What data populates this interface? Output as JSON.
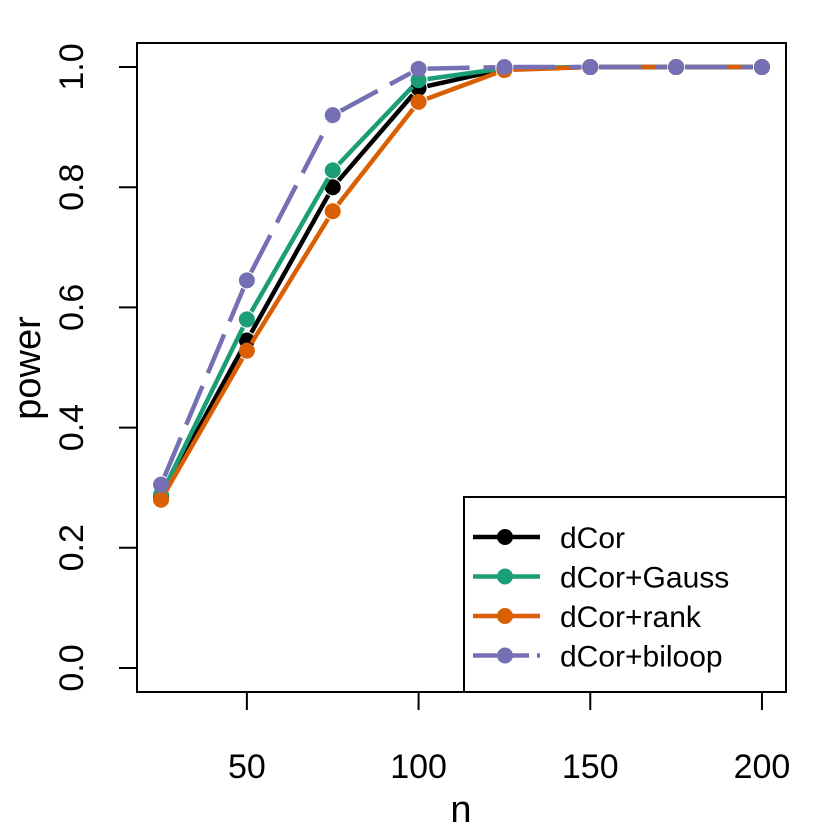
{
  "chart_data": {
    "type": "line",
    "title": "",
    "xlabel": "n",
    "ylabel": "power",
    "xlim": [
      18,
      207
    ],
    "ylim": [
      -0.04,
      1.04
    ],
    "x_ticks": [
      50,
      100,
      150,
      200
    ],
    "y_ticks": [
      0.0,
      0.2,
      0.4,
      0.6,
      0.8,
      1.0
    ],
    "x_tick_labels": [
      "50",
      "100",
      "150",
      "200"
    ],
    "y_tick_labels": [
      "0.0",
      "0.2",
      "0.4",
      "0.6",
      "0.8",
      "1.0"
    ],
    "grid": false,
    "legend_position": "bottom-right",
    "x": [
      25,
      50,
      75,
      100,
      125,
      150,
      175,
      200
    ],
    "series": [
      {
        "name": "dCor",
        "color": "#000000",
        "dash": "solid",
        "values": [
          0.285,
          0.545,
          0.8,
          0.965,
          0.997,
          1.0,
          1.0,
          1.0
        ]
      },
      {
        "name": "dCor+Gauss",
        "color": "#1b9e77",
        "dash": "solid",
        "values": [
          0.288,
          0.58,
          0.828,
          0.978,
          0.998,
          1.0,
          1.0,
          1.0
        ]
      },
      {
        "name": "dCor+rank",
        "color": "#d95f02",
        "dash": "solid",
        "values": [
          0.28,
          0.528,
          0.76,
          0.942,
          0.995,
          1.0,
          1.0,
          1.0
        ]
      },
      {
        "name": "dCor+biloop",
        "color": "#7570b3",
        "dash": "long",
        "values": [
          0.305,
          0.645,
          0.92,
          0.997,
          1.0,
          1.0,
          1.0,
          1.0
        ]
      }
    ]
  }
}
